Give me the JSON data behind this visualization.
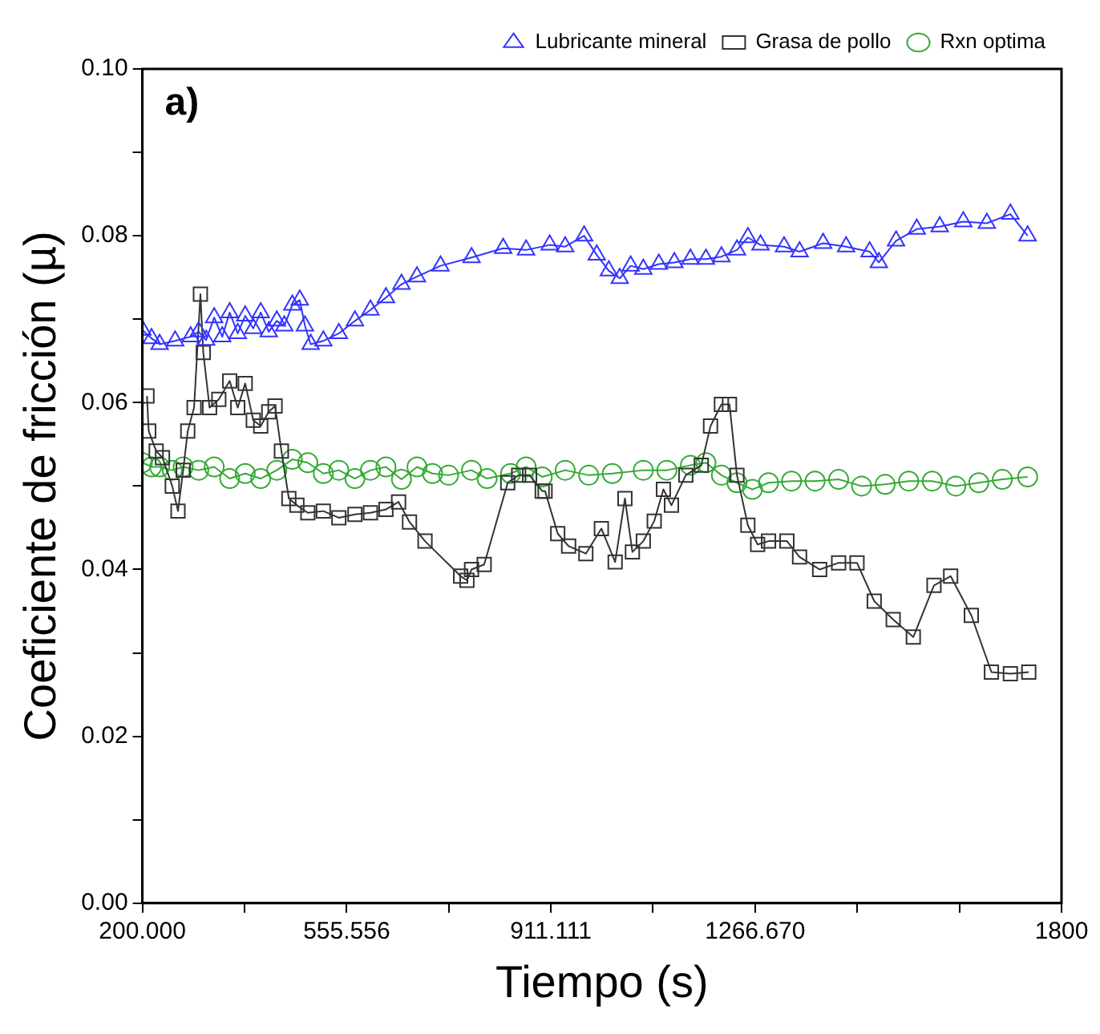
{
  "chart_data": {
    "type": "line",
    "xlabel": "Tiempo (s)",
    "ylabel": "Coeficiente de fricción (µ)",
    "annotations": [
      "a)"
    ],
    "xlim": [
      200,
      1800
    ],
    "xticks": [
      {
        "value": 200,
        "label": "200.000"
      },
      {
        "value": 377.778,
        "label": null
      },
      {
        "value": 555.556,
        "label": "555.556"
      },
      {
        "value": 733.333,
        "label": null
      },
      {
        "value": 911.111,
        "label": "911.111"
      },
      {
        "value": 1088.889,
        "label": null
      },
      {
        "value": 1266.67,
        "label": "1266.670"
      },
      {
        "value": 1444.444,
        "label": null
      },
      {
        "value": 1622.222,
        "label": null
      },
      1800
    ],
    "ylim": [
      0,
      0.1
    ],
    "yticks": [
      {
        "value": 0,
        "label": "0.00"
      },
      {
        "value": 0.01,
        "label": null
      },
      {
        "value": 0.02,
        "label": "0.02"
      },
      {
        "value": 0.03,
        "label": null
      },
      {
        "value": 0.04,
        "label": "0.04"
      },
      {
        "value": 0.05,
        "label": null
      },
      {
        "value": 0.06,
        "label": "0.06"
      },
      {
        "value": 0.07,
        "label": null
      },
      {
        "value": 0.08,
        "label": "0.08"
      },
      {
        "value": 0.09,
        "label": null
      },
      {
        "value": 0.1,
        "label": "0.10"
      }
    ],
    "grid": false,
    "legend": "top",
    "line_style": "solid",
    "series": [
      {
        "name": "Lubricante mineral",
        "color": "#3333ff",
        "marker": "triangle",
        "x": [
          200,
          216,
          230,
          257,
          284,
          298,
          311,
          325,
          339,
          352,
          366,
          379,
          393,
          406,
          420,
          434,
          447,
          461,
          474,
          483,
          493,
          515,
          542,
          570,
          597,
          624,
          651,
          678,
          719,
          773,
          828,
          868,
          909,
          936,
          969,
          991,
          1012,
          1031,
          1050,
          1072,
          1099,
          1126,
          1154,
          1181,
          1208,
          1235,
          1254,
          1276,
          1317,
          1344,
          1385,
          1425,
          1466,
          1482,
          1512,
          1548,
          1588,
          1629,
          1670,
          1711,
          1741
        ],
        "values": [
          0.0687,
          0.0677,
          0.067,
          0.0674,
          0.0679,
          0.0685,
          0.0675,
          0.0702,
          0.0679,
          0.0708,
          0.0683,
          0.0704,
          0.0689,
          0.0708,
          0.0685,
          0.0698,
          0.0692,
          0.0717,
          0.0723,
          0.0692,
          0.067,
          0.0674,
          0.0683,
          0.0698,
          0.0711,
          0.0726,
          0.0742,
          0.0751,
          0.0764,
          0.0774,
          0.0785,
          0.0783,
          0.0789,
          0.0787,
          0.08,
          0.0777,
          0.0758,
          0.0749,
          0.0764,
          0.076,
          0.0766,
          0.0768,
          0.0772,
          0.0772,
          0.0775,
          0.0783,
          0.0798,
          0.0789,
          0.0787,
          0.0781,
          0.0791,
          0.0787,
          0.0781,
          0.0768,
          0.0794,
          0.0808,
          0.0811,
          0.0817,
          0.0815,
          0.0826,
          0.08
        ]
      },
      {
        "name": "Grasa de pollo",
        "color": "#333333",
        "marker": "square",
        "x": [
          208,
          211,
          224,
          235,
          252,
          262,
          271,
          279,
          290,
          301,
          306,
          317,
          333,
          352,
          366,
          379,
          393,
          406,
          420,
          431,
          442,
          455,
          469,
          488,
          515,
          542,
          570,
          597,
          624,
          646,
          665,
          692,
          754,
          765,
          773,
          795,
          836,
          855,
          874,
          896,
          901,
          923,
          942,
          972,
          999,
          1023,
          1040,
          1053,
          1072,
          1091,
          1107,
          1121,
          1146,
          1173,
          1189,
          1208,
          1222,
          1235,
          1254,
          1271,
          1290,
          1322,
          1344,
          1379,
          1412,
          1444,
          1474,
          1507,
          1542,
          1578,
          1607,
          1643,
          1678,
          1711,
          1743
        ],
        "values": [
          0.0608,
          0.0566,
          0.0542,
          0.0534,
          0.05,
          0.047,
          0.0519,
          0.0566,
          0.0594,
          0.073,
          0.066,
          0.0594,
          0.0604,
          0.0626,
          0.0594,
          0.0623,
          0.0579,
          0.0572,
          0.0589,
          0.0596,
          0.0542,
          0.0485,
          0.0477,
          0.0468,
          0.047,
          0.0462,
          0.0466,
          0.0468,
          0.0472,
          0.0481,
          0.0457,
          0.0434,
          0.0392,
          0.0387,
          0.04,
          0.0406,
          0.0504,
          0.0513,
          0.0513,
          0.0494,
          0.0494,
          0.0443,
          0.0428,
          0.0419,
          0.0449,
          0.0409,
          0.0485,
          0.0421,
          0.0434,
          0.0458,
          0.0496,
          0.0477,
          0.0513,
          0.0525,
          0.0572,
          0.0598,
          0.0598,
          0.0513,
          0.0453,
          0.043,
          0.0434,
          0.0434,
          0.0415,
          0.04,
          0.0408,
          0.0408,
          0.0362,
          0.034,
          0.0319,
          0.0381,
          0.0392,
          0.0345,
          0.0277,
          0.0275,
          0.0277
        ]
      },
      {
        "name": "Rxn optima",
        "color": "#33aa33",
        "marker": "circle",
        "x": [
          200,
          216,
          230,
          252,
          271,
          298,
          325,
          352,
          379,
          406,
          434,
          461,
          488,
          515,
          542,
          570,
          597,
          624,
          651,
          678,
          705,
          733,
          773,
          800,
          841,
          868,
          896,
          936,
          977,
          1018,
          1072,
          1113,
          1154,
          1181,
          1208,
          1235,
          1262,
          1290,
          1330,
          1371,
          1412,
          1452,
          1493,
          1534,
          1575,
          1616,
          1656,
          1697,
          1741
        ],
        "values": [
          0.0528,
          0.0523,
          0.0523,
          0.0519,
          0.0523,
          0.0519,
          0.0523,
          0.0509,
          0.0515,
          0.0509,
          0.0519,
          0.0532,
          0.0528,
          0.0515,
          0.0519,
          0.0509,
          0.0519,
          0.0523,
          0.0508,
          0.0523,
          0.0515,
          0.0513,
          0.0519,
          0.0509,
          0.0515,
          0.0523,
          0.0511,
          0.0519,
          0.0513,
          0.0515,
          0.0519,
          0.0519,
          0.0525,
          0.0528,
          0.0513,
          0.0504,
          0.0496,
          0.0504,
          0.0506,
          0.0506,
          0.0508,
          0.05,
          0.0502,
          0.0506,
          0.0506,
          0.05,
          0.0504,
          0.0508,
          0.0511
        ]
      }
    ]
  }
}
